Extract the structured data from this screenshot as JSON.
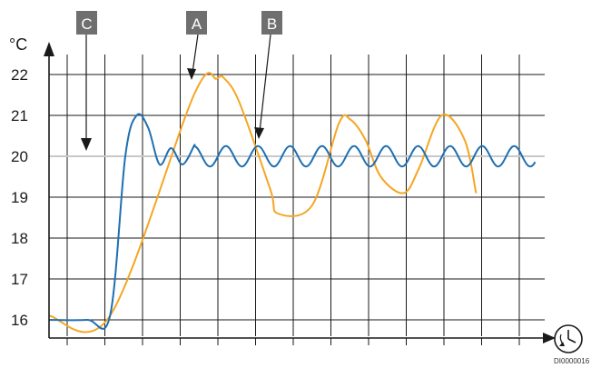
{
  "chart_data": {
    "type": "line",
    "ylabel": "°C",
    "y_ticks": [
      16,
      17,
      18,
      19,
      20,
      21,
      22
    ],
    "ylim": [
      16,
      22.4
    ],
    "grid": true,
    "x_axis": "time (unlabelled)",
    "setpoint": 20,
    "series": [
      {
        "color": "#f5a623",
        "x": [
          0,
          1.6,
          3.8,
          4.4,
          4.6,
          5.0,
          5.8,
          6.0,
          6.9,
          7.6,
          7.9,
          8.3,
          8.7,
          9.3,
          9.7,
          10.3,
          10.9,
          11.2
        ],
        "y": [
          16.1,
          16.1,
          21.5,
          21.9,
          21.9,
          21.3,
          19.2,
          18.6,
          18.8,
          20.8,
          20.9,
          20.4,
          19.5,
          19.1,
          19.7,
          21.0,
          20.4,
          19.1
        ]
      },
      {
        "color": "#1f6fb2",
        "x": [
          0,
          1.0,
          1.6,
          2.0,
          2.3,
          2.6,
          2.9,
          3.2,
          3.5,
          3.8,
          12.8
        ],
        "y": [
          16.0,
          16.0,
          16.1,
          20.0,
          21.0,
          20.7,
          19.8,
          20.2,
          19.8,
          20.25,
          19.8
        ],
        "note": "oscillates ±0.25 around 20 with period ≈0.8 after x≈3"
      }
    ]
  },
  "callouts": {
    "a": "A",
    "b": "B",
    "c": "C"
  },
  "axis_icon": "clock-arrow-icon",
  "figure_code": "DI0000016"
}
